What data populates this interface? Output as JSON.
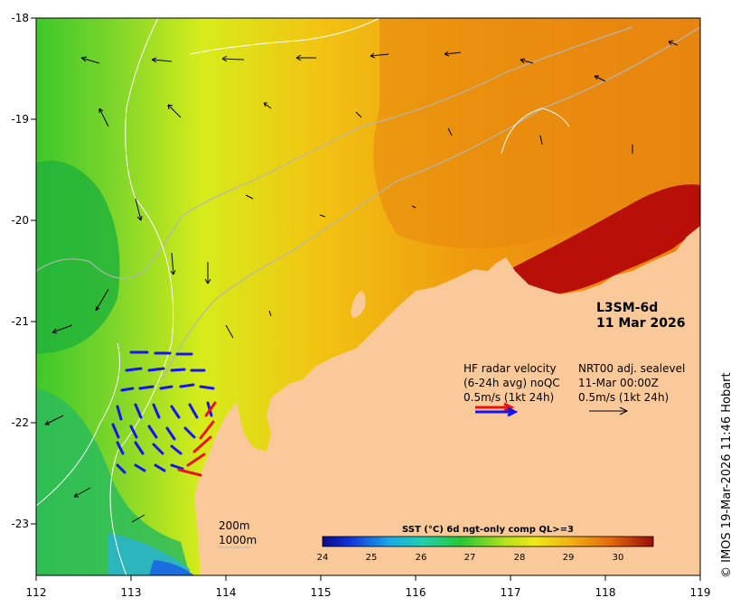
{
  "product": {
    "name": "L3SM-6d",
    "date": "11 Mar 2026"
  },
  "axes": {
    "lon_ticks": [
      "112",
      "113",
      "114",
      "115",
      "116",
      "117",
      "118",
      "119"
    ],
    "lat_ticks": [
      "-18",
      "-19",
      "-20",
      "-21",
      "-22",
      "-23"
    ],
    "lon_range": [
      112,
      119
    ],
    "lat_range": [
      -23.5,
      -18
    ]
  },
  "legend": {
    "hf_radar": {
      "line1": "HF radar velocity",
      "line2": "(6-24h avg) noQC",
      "line3": "0.5m/s (1kt 24h)"
    },
    "sealevel": {
      "line1": "NRT00 adj. sealevel",
      "line2": "11-Mar 00:00Z",
      "line3": "0.5m/s (1kt 24h)"
    }
  },
  "colorbar": {
    "title": "SST (°C) 6d ngt-only comp QL>=3",
    "ticks": [
      "24",
      "25",
      "26",
      "27",
      "28",
      "29",
      "30"
    ],
    "range": [
      24,
      30.7
    ]
  },
  "scale_bar": {
    "label_200": "200m",
    "label_1000": "1000m"
  },
  "credit": "© IMOS 19-Mar-2026 11:46 Hobart",
  "colors": {
    "land": "#f9c99a",
    "hf_radar_blue": "#1515ee",
    "hf_radar_red": "#ee1111",
    "isobath_white": "#ffffff",
    "isobath_grey": "#b5b5b5"
  }
}
